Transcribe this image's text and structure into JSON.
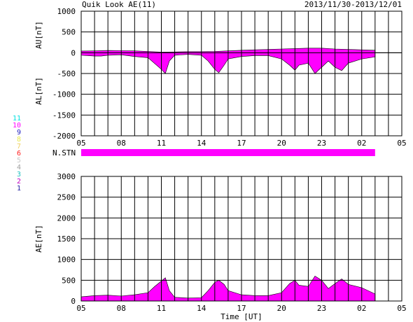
{
  "header": {
    "title": "Quik Look AE(11)",
    "date_range": "2013/11/30-2013/12/01"
  },
  "colors": {
    "fill": "#ff00ff",
    "axis": "#000000",
    "background": "#ffffff"
  },
  "station_label": "N.STN",
  "station_numbers": [
    {
      "label": "11",
      "color": "#00e0e0"
    },
    {
      "label": "10",
      "color": "#ff00ff"
    },
    {
      "label": "9",
      "color": "#2020c0"
    },
    {
      "label": "8",
      "color": "#e8e850"
    },
    {
      "label": "7",
      "color": "#f0d060"
    },
    {
      "label": "6",
      "color": "#ff2020"
    },
    {
      "label": "5",
      "color": "#c8c8c8"
    },
    {
      "label": "4",
      "color": "#a0a0a0"
    },
    {
      "label": "3",
      "color": "#20c0c0"
    },
    {
      "label": "2",
      "color": "#c000c0"
    },
    {
      "label": "1",
      "color": "#2020a0"
    }
  ],
  "chart_data": [
    {
      "type": "area",
      "ylabel_top": "AU[nT]",
      "ylabel_bottom": "AL[nT]",
      "ylim": [
        -2000,
        1000
      ],
      "yticks": [
        "1000",
        "500",
        "0",
        "-500",
        "-1000",
        "-1500",
        "-2000"
      ],
      "xticks": [
        "05",
        "08",
        "11",
        "14",
        "17",
        "20",
        "23",
        "02",
        "05"
      ],
      "x_hours_per_tick": 3,
      "data_end_hour": 22,
      "au": [
        40,
        45,
        55,
        50,
        45,
        30,
        15,
        20,
        25,
        25,
        30,
        45,
        60,
        70,
        80,
        90,
        100,
        110,
        110,
        90,
        60
      ],
      "au_x": [
        0,
        1,
        2,
        3,
        4,
        5,
        6,
        7,
        8,
        9,
        10,
        11,
        12,
        13,
        14,
        15,
        16,
        17,
        18,
        19,
        22
      ],
      "al": [
        [
          0,
          -60
        ],
        [
          1,
          -80
        ],
        [
          1.5,
          -80
        ],
        [
          2,
          -60
        ],
        [
          3,
          -50
        ],
        [
          4,
          -90
        ],
        [
          5,
          -120
        ],
        [
          6,
          -400
        ],
        [
          6.3,
          -500
        ],
        [
          6.6,
          -200
        ],
        [
          7,
          -60
        ],
        [
          8,
          -40
        ],
        [
          9,
          -60
        ],
        [
          9.5,
          -200
        ],
        [
          10,
          -400
        ],
        [
          10.3,
          -480
        ],
        [
          10.7,
          -300
        ],
        [
          11,
          -150
        ],
        [
          12,
          -90
        ],
        [
          13,
          -70
        ],
        [
          14,
          -70
        ],
        [
          15,
          -150
        ],
        [
          15.6,
          -300
        ],
        [
          16,
          -420
        ],
        [
          16.3,
          -300
        ],
        [
          17,
          -250
        ],
        [
          17.5,
          -500
        ],
        [
          18,
          -350
        ],
        [
          18.5,
          -200
        ],
        [
          19,
          -350
        ],
        [
          19.5,
          -430
        ],
        [
          20,
          -250
        ],
        [
          21,
          -150
        ],
        [
          22,
          -100
        ]
      ]
    },
    {
      "type": "area",
      "ylabel": "AE[nT]",
      "xlabel": "Time [UT]",
      "ylim": [
        0,
        3000
      ],
      "yticks": [
        "3000",
        "2500",
        "2000",
        "1500",
        "1000",
        "500",
        "0"
      ],
      "xticks": [
        "05",
        "08",
        "11",
        "14",
        "17",
        "20",
        "23",
        "02",
        "05"
      ],
      "x_hours_per_tick": 3,
      "data_end_hour": 22,
      "x": [
        0,
        1,
        2,
        3,
        4,
        5,
        5.5,
        6,
        6.3,
        6.6,
        7,
        8,
        9,
        9.5,
        10,
        10.3,
        10.7,
        11,
        12,
        13,
        14,
        15,
        15.6,
        16,
        16.3,
        17,
        17.5,
        18,
        18.5,
        19,
        19.5,
        20,
        21,
        22
      ],
      "values": [
        100,
        130,
        140,
        120,
        150,
        200,
        350,
        480,
        560,
        250,
        90,
        70,
        80,
        250,
        450,
        500,
        400,
        250,
        150,
        130,
        130,
        200,
        420,
        500,
        380,
        350,
        600,
        500,
        300,
        420,
        530,
        400,
        320,
        170
      ]
    }
  ]
}
